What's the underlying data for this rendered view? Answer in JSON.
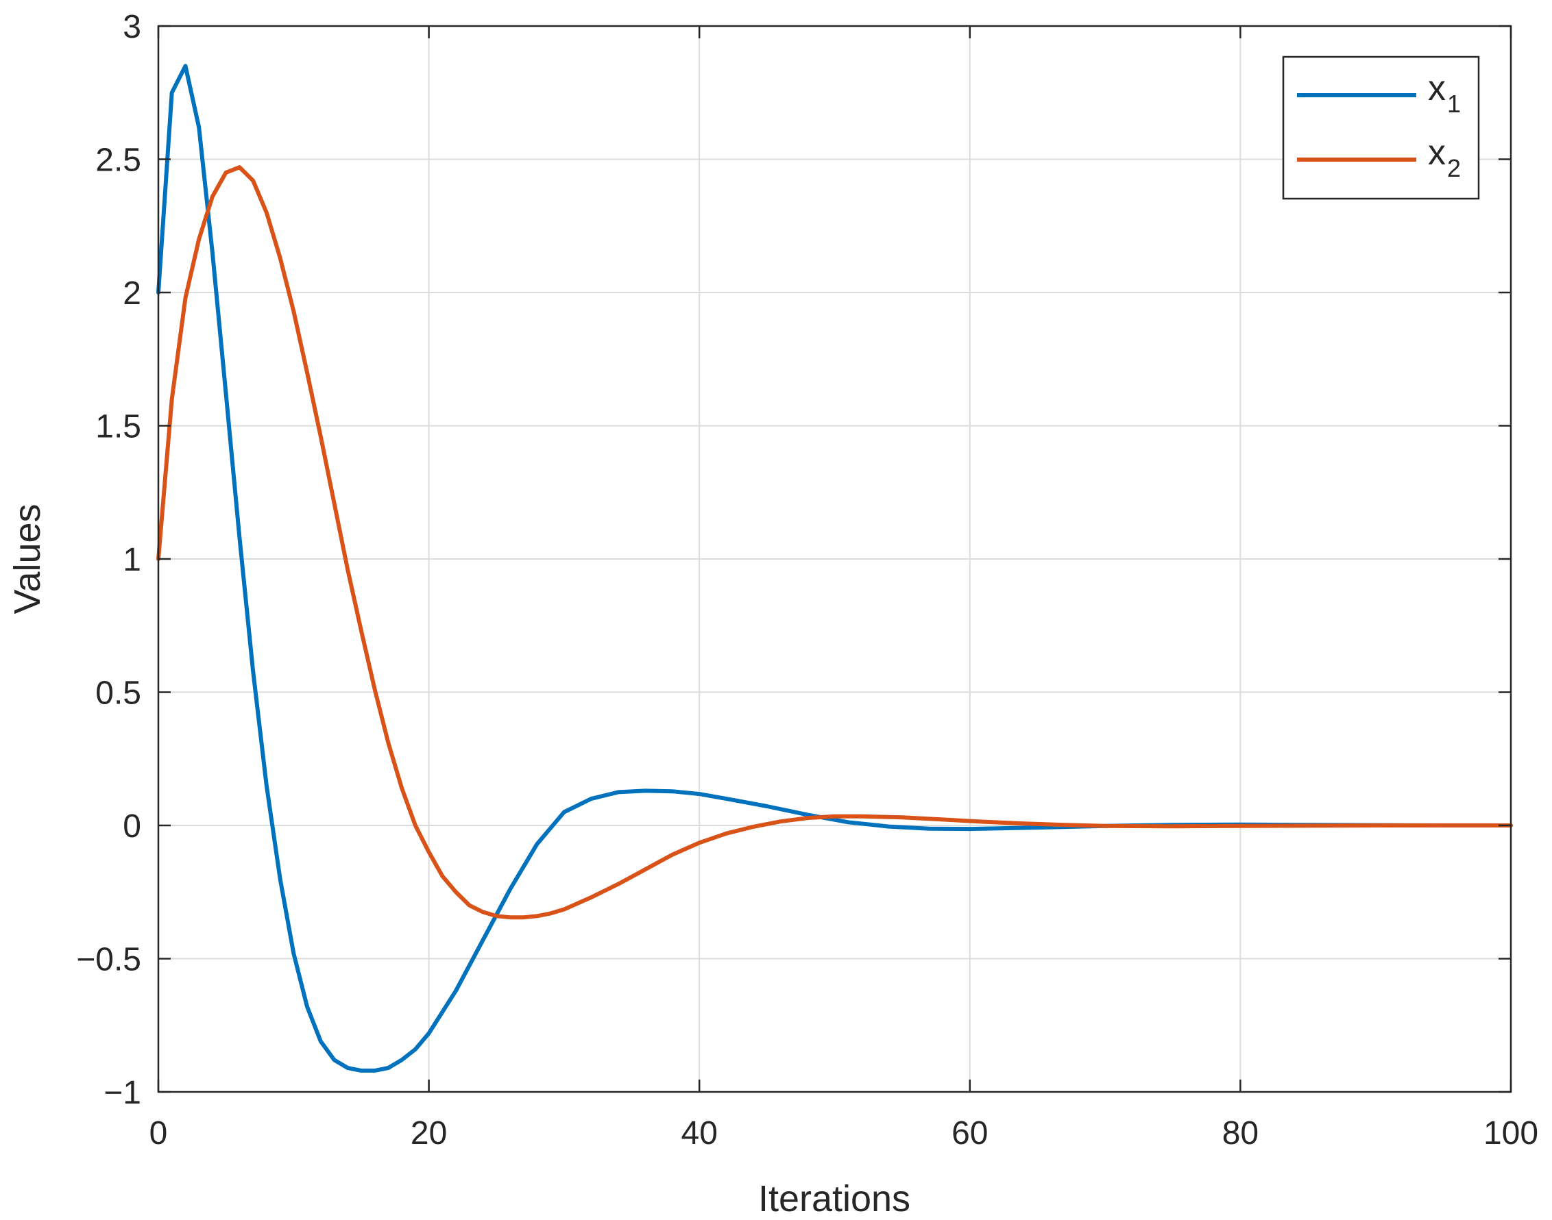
{
  "chart_data": {
    "type": "line",
    "title": "",
    "xlabel": "Iterations",
    "ylabel": "Values",
    "xlim": [
      0,
      100
    ],
    "ylim": [
      -1,
      3
    ],
    "xticks": [
      0,
      20,
      40,
      60,
      80,
      100
    ],
    "yticks": [
      -1,
      -0.5,
      0,
      0.5,
      1,
      1.5,
      2,
      2.5,
      3
    ],
    "ytick_labels": [
      "−1",
      "−0.5",
      "0",
      "0.5",
      "1",
      "1.5",
      "2",
      "2.5",
      "3"
    ],
    "xtick_labels": [
      "0",
      "20",
      "40",
      "60",
      "80",
      "100"
    ],
    "grid": true,
    "legend_position": "top-right",
    "series": [
      {
        "name": "x",
        "name_subscript": "1",
        "color": "#0072BD",
        "x": [
          0,
          1,
          2,
          3,
          4,
          5,
          6,
          7,
          8,
          9,
          10,
          11,
          12,
          13,
          14,
          15,
          16,
          17,
          18,
          19,
          20,
          22,
          24,
          26,
          28,
          30,
          32,
          34,
          36,
          38,
          40,
          42,
          45,
          48,
          51,
          54,
          57,
          60,
          65,
          70,
          75,
          80,
          85,
          90,
          95,
          100
        ],
        "y": [
          2.0,
          2.75,
          2.85,
          2.62,
          2.15,
          1.62,
          1.08,
          0.58,
          0.15,
          -0.2,
          -0.48,
          -0.68,
          -0.81,
          -0.88,
          -0.91,
          -0.92,
          -0.92,
          -0.91,
          -0.88,
          -0.84,
          -0.78,
          -0.62,
          -0.43,
          -0.24,
          -0.07,
          0.05,
          0.1,
          0.125,
          0.13,
          0.128,
          0.118,
          0.1,
          0.072,
          0.04,
          0.012,
          -0.004,
          -0.012,
          -0.013,
          -0.008,
          -0.002,
          0.002,
          0.003,
          0.002,
          0.001,
          0.0,
          0.0
        ]
      },
      {
        "name": "x",
        "name_subscript": "2",
        "color": "#D95319",
        "x": [
          0,
          1,
          2,
          3,
          4,
          5,
          6,
          7,
          8,
          9,
          10,
          11,
          12,
          13,
          14,
          15,
          16,
          17,
          18,
          19,
          20,
          21,
          22,
          23,
          24,
          25,
          26,
          27,
          28,
          29,
          30,
          32,
          34,
          36,
          38,
          40,
          42,
          44,
          46,
          48,
          50,
          52,
          55,
          58,
          61,
          64,
          67,
          70,
          75,
          80,
          85,
          90,
          95,
          100
        ],
        "y": [
          1.0,
          1.6,
          1.98,
          2.2,
          2.36,
          2.45,
          2.47,
          2.42,
          2.3,
          2.13,
          1.93,
          1.7,
          1.46,
          1.21,
          0.96,
          0.73,
          0.51,
          0.31,
          0.14,
          0.0,
          -0.1,
          -0.19,
          -0.25,
          -0.3,
          -0.325,
          -0.34,
          -0.345,
          -0.345,
          -0.34,
          -0.33,
          -0.315,
          -0.27,
          -0.22,
          -0.165,
          -0.11,
          -0.065,
          -0.03,
          -0.005,
          0.015,
          0.028,
          0.034,
          0.034,
          0.03,
          0.022,
          0.014,
          0.007,
          0.002,
          -0.002,
          -0.003,
          -0.002,
          -0.001,
          0.0,
          0.0,
          0.0
        ]
      }
    ]
  }
}
